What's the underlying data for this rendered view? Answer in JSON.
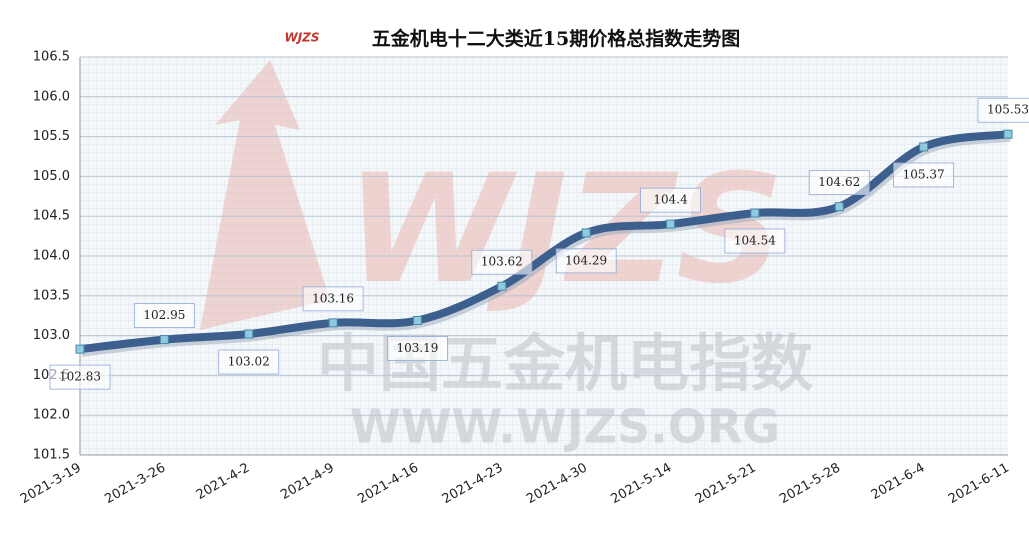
{
  "chart_data": {
    "type": "line",
    "title": "五金机电十二大类近15期价格总指数走势图",
    "logo": "WJZS",
    "watermark": [
      "中国五金机电指数",
      "WWW.WJZS.ORG"
    ],
    "categories": [
      "2021-3-19",
      "2021-3-26",
      "2021-4-2",
      "2021-4-9",
      "2021-4-16",
      "2021-4-23",
      "2021-4-30",
      "2021-5-14",
      "2021-5-21",
      "2021-5-28",
      "2021-6-4",
      "2021-6-11"
    ],
    "values": [
      102.83,
      102.95,
      103.02,
      103.16,
      103.19,
      103.62,
      104.29,
      104.4,
      104.54,
      104.62,
      105.37,
      105.53
    ],
    "color": "#3d5f8e",
    "ylim": [
      101.5,
      106.5
    ],
    "yticks": [
      101.5,
      {
        "value": 102,
        "label": "102.0"
      },
      102.5,
      {
        "value": 103,
        "label": "103.0"
      },
      103.5,
      {
        "value": 104,
        "label": "104.0"
      },
      104.5,
      {
        "value": 105,
        "label": "105.0"
      },
      105.5,
      {
        "value": 106,
        "label": "106.0"
      },
      106.5
    ],
    "grid": true
  }
}
